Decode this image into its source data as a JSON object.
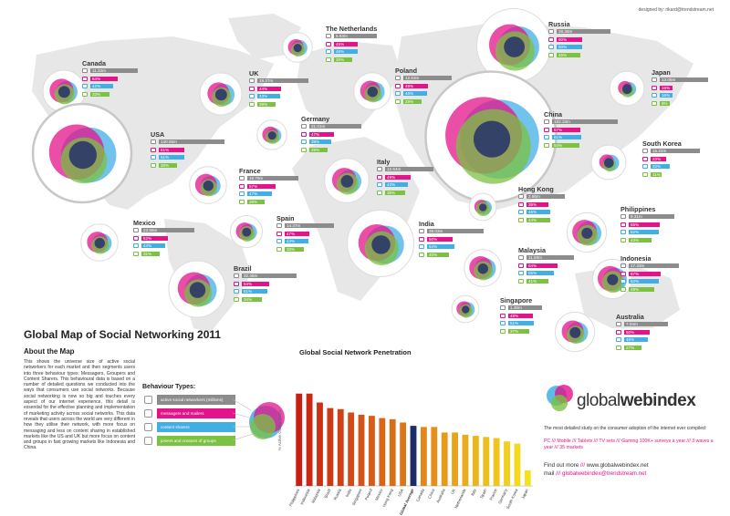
{
  "designer": "designed by: rikard@trendstream.net",
  "title": "Global Map of Social Networking 2011",
  "about": {
    "heading": "About the Map",
    "text": "This shows the universe size of active social networkers for each market and then segments users into three behaviour types: Messagers, Groupers and Content Sharers. This behavioural data is based on a number of detailed questions we conducted into the ways that consumers use social networks. Because social networking is now so big and touches every aspect of our internet experience, this detail is essential for the effective planning and implementation of marketing activity across social networks. This data reveals that users across the world are very different in how they utilise their network, with more focus on messaging and less on content sharing in established markets like the US and UK but more focus on content and groups in fast growing markets like Indonesia and China."
  },
  "behaviour": {
    "heading": "Behaviour Types:",
    "items": [
      {
        "label": "active social networkers (millions)",
        "color": "#8c8c8c",
        "icon": "globe-icon"
      },
      {
        "label": "messagers and mailers",
        "color": "#e4138a",
        "icon": "mail-icon"
      },
      {
        "label": "content sharers",
        "color": "#41aee6",
        "icon": "share-icon"
      },
      {
        "label": "joiners and creators of groups",
        "color": "#7bc142",
        "icon": "group-icon"
      }
    ]
  },
  "colors": {
    "grey": "#8c8c8c",
    "pink": "#e4138a",
    "blue": "#41aee6",
    "green": "#7bc142",
    "navy": "#1f2a6b"
  },
  "countries": [
    {
      "name": "Canada",
      "values": [
        "11.32m",
        "54%",
        "42%",
        "33%"
      ]
    },
    {
      "name": "USA",
      "values": [
        "140.55m",
        "51%",
        "51%",
        "30%"
      ]
    },
    {
      "name": "UK",
      "values": [
        "19.27m",
        "44%",
        "43%",
        "29%"
      ]
    },
    {
      "name": "The Netherlands",
      "values": [
        "5.93m",
        "45%",
        "46%",
        "30%"
      ]
    },
    {
      "name": "Poland",
      "values": [
        "12.53m",
        "48%",
        "46%",
        "29%"
      ]
    },
    {
      "name": "Germany",
      "values": [
        "21.01m",
        "47%",
        "39%",
        "29%"
      ]
    },
    {
      "name": "France",
      "values": [
        "18.76m",
        "57%",
        "47%",
        "28%"
      ]
    },
    {
      "name": "Italy",
      "values": [
        "12.64m",
        "49%",
        "43%",
        "36%"
      ]
    },
    {
      "name": "Spain",
      "values": [
        "14.37m",
        "47%",
        "44%",
        "33%"
      ]
    },
    {
      "name": "Mexico",
      "values": [
        "23.86m",
        "52%",
        "44%",
        "31%"
      ]
    },
    {
      "name": "Brazil",
      "values": [
        "32.48m",
        "54%",
        "51%",
        "34%"
      ]
    },
    {
      "name": "India",
      "values": [
        "39.03m",
        "50%",
        "54%",
        "40%"
      ]
    },
    {
      "name": "Russia",
      "values": [
        "28.38m",
        "50%",
        "50%",
        "45%"
      ]
    },
    {
      "name": "China",
      "values": [
        "182.33m",
        "57%",
        "61%",
        "54%"
      ]
    },
    {
      "name": "Japan",
      "values": [
        "13.06m",
        "16%",
        "16%",
        "8%"
      ]
    },
    {
      "name": "South Korea",
      "values": [
        "15.22m",
        "23%",
        "32%",
        "11%"
      ]
    },
    {
      "name": "Hong Kong",
      "values": [
        "2.86m",
        "39%",
        "46%",
        "44%"
      ]
    },
    {
      "name": "Philippines",
      "values": [
        "9.31m",
        "65%",
        "62%",
        "43%"
      ]
    },
    {
      "name": "Malaysia",
      "values": [
        "11.50m",
        "64%",
        "55%",
        "41%"
      ]
    },
    {
      "name": "Indonesia",
      "values": [
        "17.33m",
        "67%",
        "62%",
        "49%"
      ]
    },
    {
      "name": "Singapore",
      "values": [
        "1.36m",
        "48%",
        "51%",
        "37%"
      ]
    },
    {
      "name": "Australia",
      "values": [
        "7.04m",
        "50%",
        "46%",
        "27%"
      ]
    }
  ],
  "chart_data": {
    "type": "bar",
    "title": "Global Social Network Penetration",
    "ylabel": "% Active Global Users",
    "categories": [
      "Philippines",
      "Indonesia",
      "Malaysia",
      "Brazil",
      "Russia",
      "India",
      "Singapore",
      "Poland",
      "Mexico",
      "Hong Kong",
      "USA",
      "Global Average",
      "Canada",
      "China",
      "Australia",
      "UK",
      "Netherlands",
      "Italy",
      "Spain",
      "France",
      "Germany",
      "South Korea",
      "Japan"
    ],
    "values": [
      83,
      83,
      75,
      70,
      69,
      66,
      64,
      63,
      61,
      60,
      57,
      54,
      53,
      53,
      48,
      48,
      46,
      45,
      44,
      43,
      40,
      38,
      14
    ],
    "highlight": "Global Average",
    "ylim": [
      0,
      100
    ]
  },
  "logo": {
    "part1": "global",
    "part2": "web",
    "part3": "index"
  },
  "tagline": "The most detailed study on the consumer adoption of the internet ever compiled:",
  "devices": "PC /// Mobile /// Tablets /// TV sets /// Gaming 100K+ surveys a year /// 3 waves a year /// 35 markets",
  "find": {
    "label1": "Find out more",
    "sep1": "///",
    "url": "www.globalwebindex.net",
    "label2": "mail",
    "sep2": "///",
    "mail": "globalwebindex@trendstream.net"
  }
}
